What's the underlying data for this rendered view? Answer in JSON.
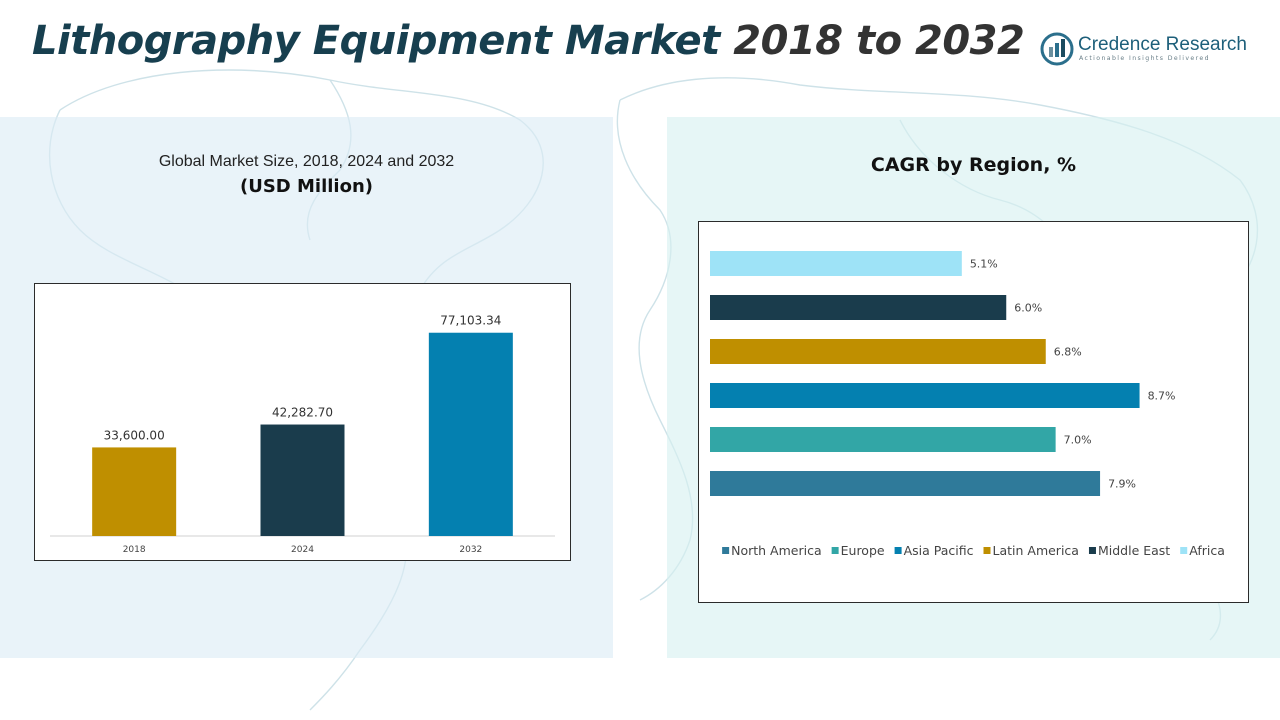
{
  "header": {
    "title_part1": "Lithography Equipment Market",
    "title_part2": "2018 to 2032"
  },
  "logo": {
    "name": "Credence Research",
    "tagline": "Actionable Insights Delivered"
  },
  "colors": {
    "title_dark": "#173f4f",
    "year_2018": "#bf8f00",
    "year_2024": "#1a3c4c",
    "year_2032": "#0480b0",
    "north_america": "#2f7a9a",
    "europe": "#32a6a6",
    "asia_pacific": "#0480b0",
    "latin_america": "#bf8f00",
    "middle_east": "#1a3c4c",
    "africa": "#9ee3f7"
  },
  "chart_data": [
    {
      "type": "bar",
      "title": "Global Market Size, 2018, 2024 and 2032",
      "subtitle": "(USD Million)",
      "categories": [
        "2018",
        "2024",
        "2032"
      ],
      "values": [
        33600.0,
        42282.7,
        77103.34
      ],
      "data_labels": [
        "33,600.00",
        "42,282.70",
        "77,103.34"
      ],
      "colors": [
        "#bf8f00",
        "#1a3c4c",
        "#0480b0"
      ],
      "ylim": [
        0,
        88000
      ],
      "grid": false
    },
    {
      "type": "bar",
      "orientation": "horizontal",
      "title": "CAGR by Region, %",
      "categories": [
        "North America",
        "Europe",
        "Asia Pacific",
        "Latin America",
        "Middle East",
        "Africa"
      ],
      "values": [
        7.9,
        7.0,
        8.7,
        6.8,
        6.0,
        5.1
      ],
      "data_labels": [
        "7.9%",
        "7.0%",
        "8.7%",
        "6.8%",
        "6.0%",
        "5.1%"
      ],
      "colors": [
        "#2f7a9a",
        "#32a6a6",
        "#0480b0",
        "#bf8f00",
        "#1a3c4c",
        "#9ee3f7"
      ],
      "xlim": [
        0,
        9.6
      ],
      "legend": "bottom",
      "grid": false
    }
  ]
}
